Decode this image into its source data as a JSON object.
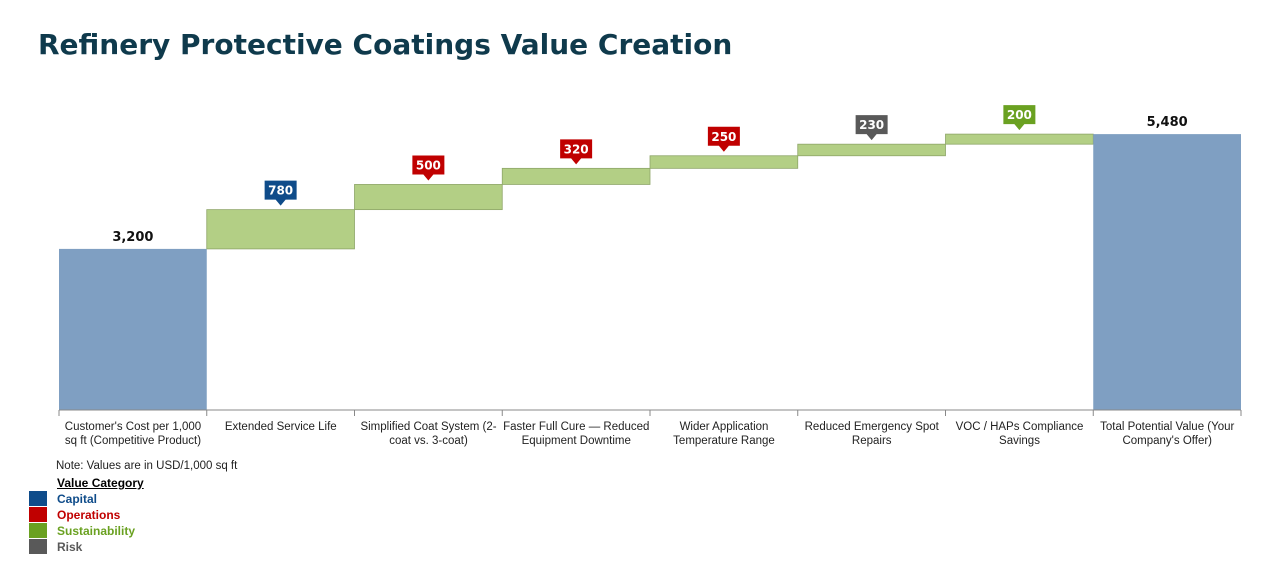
{
  "title": "Refinery Protective Coatings Value Creation",
  "note": "Note: Values are in USD/1,000 sq ft",
  "legend": {
    "title": "Value Category",
    "items": [
      {
        "label": "Capital",
        "color": "#0f4c8a"
      },
      {
        "label": "Operations",
        "color": "#c00000"
      },
      {
        "label": "Sustainability",
        "color": "#6aa121"
      },
      {
        "label": "Risk",
        "color": "#595959"
      }
    ]
  },
  "colors": {
    "total_bar": "#7f9fc2",
    "increment_bar": "#b3cf85",
    "increment_border": "#8ea668",
    "axis": "#888888"
  },
  "chart_data": {
    "type": "waterfall",
    "title": "Refinery Protective Coatings Value Creation",
    "ylim": [
      0,
      5800
    ],
    "categories": [
      "Customer's Cost per 1,000 sq ft (Competitive Product)",
      "Extended Service Life",
      "Simplified Coat System (2-coat vs. 3-coat)",
      "Faster Full Cure — Reduced Equipment Downtime",
      "Wider Application Temperature Range",
      "Reduced Emergency Spot Repairs",
      "VOC / HAPs Compliance Savings",
      "Total Potential Value (Your Company's Offer)"
    ],
    "values": [
      3200,
      780,
      500,
      320,
      250,
      230,
      200,
      5480
    ],
    "labels": [
      "3,200",
      "780",
      "500",
      "320",
      "250",
      "230",
      "200",
      "5,480"
    ],
    "kinds": [
      "total",
      "increment",
      "increment",
      "increment",
      "increment",
      "increment",
      "increment",
      "total"
    ],
    "value_category": [
      null,
      "Capital",
      "Operations",
      "Operations",
      "Operations",
      "Risk",
      "Sustainability",
      null
    ]
  }
}
